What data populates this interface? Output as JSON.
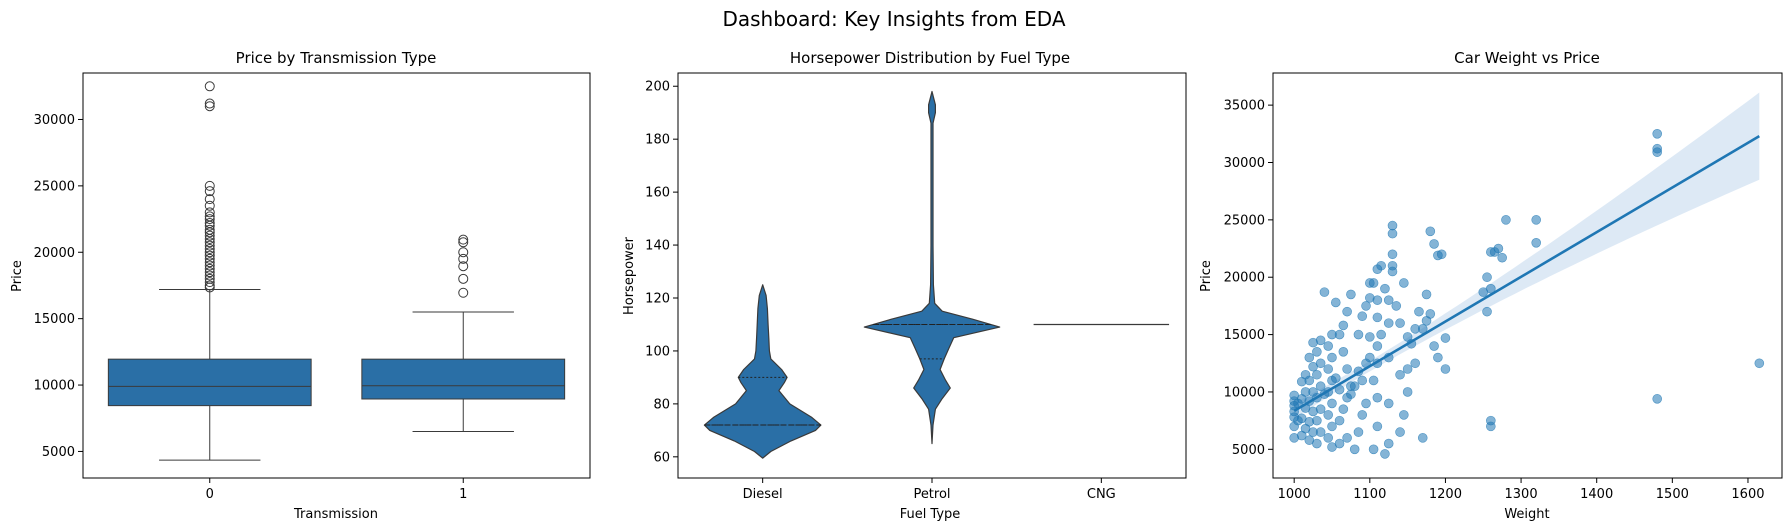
{
  "figure": {
    "title": "Dashboard: Key Insights from EDA"
  },
  "colors": {
    "primary": "#2a6fa6",
    "line": "#1f77b4",
    "band": "#c6dbef",
    "outline": "#3a3a3a"
  },
  "chart_data": [
    {
      "type": "box",
      "title": "Price by Transmission Type",
      "xlabel": "Transmission",
      "ylabel": "Price",
      "categories": [
        "0",
        "1"
      ],
      "ylim": [
        3000,
        33500
      ],
      "yticks": [
        5000,
        10000,
        15000,
        20000,
        25000,
        30000
      ],
      "boxes": [
        {
          "category": "0",
          "whisker_low": 4350,
          "q1": 8450,
          "median": 9900,
          "q3": 11950,
          "whisker_high": 17200,
          "outliers": [
            32500,
            31200,
            31000,
            25000,
            24600,
            24000,
            23500,
            23000,
            22700,
            22500,
            22200,
            22000,
            21700,
            21500,
            21250,
            21000,
            20750,
            20500,
            20250,
            20000,
            19750,
            19500,
            19250,
            19000,
            18750,
            18500,
            18250,
            18000,
            17750,
            17500,
            17350
          ]
        },
        {
          "category": "1",
          "whisker_low": 6500,
          "q1": 8950,
          "median": 9950,
          "q3": 11950,
          "whisker_high": 15500,
          "outliers": [
            20950,
            20750,
            20000,
            19500,
            18950,
            18000,
            16950
          ]
        }
      ]
    },
    {
      "type": "violin",
      "title": "Horsepower Distribution by Fuel Type",
      "xlabel": "Fuel Type",
      "ylabel": "Horsepower",
      "categories": [
        "Diesel",
        "Petrol",
        "CNG"
      ],
      "ylim": [
        52,
        205
      ],
      "yticks": [
        60,
        80,
        100,
        120,
        140,
        160,
        180,
        200
      ],
      "violins": [
        {
          "category": "Diesel",
          "quartiles": [
            72,
            72,
            90
          ],
          "profile": [
            [
              59.5,
              0
            ],
            [
              62,
              0.12
            ],
            [
              66,
              0.42
            ],
            [
              70,
              0.78
            ],
            [
              72,
              0.86
            ],
            [
              75,
              0.72
            ],
            [
              80,
              0.4
            ],
            [
              85,
              0.24
            ],
            [
              88,
              0.32
            ],
            [
              90,
              0.36
            ],
            [
              93,
              0.28
            ],
            [
              97,
              0.12
            ],
            [
              100,
              0.1
            ],
            [
              105,
              0.09
            ],
            [
              110,
              0.08
            ],
            [
              116,
              0.07
            ],
            [
              121,
              0.05
            ],
            [
              125,
              0
            ]
          ]
        },
        {
          "category": "Petrol",
          "quartiles": [
            97,
            110,
            110
          ],
          "profile": [
            [
              65,
              0
            ],
            [
              72,
              0.015
            ],
            [
              78,
              0.05
            ],
            [
              82,
              0.15
            ],
            [
              86,
              0.27
            ],
            [
              89,
              0.2
            ],
            [
              93,
              0.12
            ],
            [
              97,
              0.18
            ],
            [
              101,
              0.25
            ],
            [
              105,
              0.32
            ],
            [
              109,
              1.0
            ],
            [
              112,
              0.6
            ],
            [
              115,
              0.15
            ],
            [
              118,
              0.04
            ],
            [
              125,
              0.02
            ],
            [
              140,
              0.015
            ],
            [
              160,
              0.015
            ],
            [
              178,
              0.015
            ],
            [
              186,
              0.015
            ],
            [
              190,
              0.05
            ],
            [
              193,
              0.05
            ],
            [
              198,
              0
            ]
          ]
        },
        {
          "category": "CNG",
          "quartiles": [
            110,
            110,
            110
          ],
          "constant": 110
        }
      ]
    },
    {
      "type": "scatter",
      "title": "Car Weight vs Price",
      "xlabel": "Weight",
      "ylabel": "Price",
      "xlim": [
        972,
        1645
      ],
      "ylim": [
        2500,
        37800
      ],
      "xticks": [
        1000,
        1100,
        1200,
        1300,
        1400,
        1500,
        1600
      ],
      "yticks": [
        5000,
        10000,
        15000,
        20000,
        25000,
        30000,
        35000
      ],
      "regression": {
        "x": [
          1000,
          1615
        ],
        "y": [
          8350,
          32300
        ],
        "ci_upper_end": 36100,
        "ci_lower_end": 28500
      },
      "points": [
        [
          1480,
          32500
        ],
        [
          1480,
          31200
        ],
        [
          1480,
          30900
        ],
        [
          1480,
          9400
        ],
        [
          1615,
          12500
        ],
        [
          1280,
          25000
        ],
        [
          1320,
          25000
        ],
        [
          1320,
          23000
        ],
        [
          1270,
          22500
        ],
        [
          1260,
          22200
        ],
        [
          1265,
          22200
        ],
        [
          1275,
          21700
        ],
        [
          1255,
          20000
        ],
        [
          1260,
          19000
        ],
        [
          1250,
          18700
        ],
        [
          1255,
          17000
        ],
        [
          1260,
          7500
        ],
        [
          1260,
          7000
        ],
        [
          1195,
          22000
        ],
        [
          1190,
          21900
        ],
        [
          1185,
          22900
        ],
        [
          1180,
          24000
        ],
        [
          1200,
          14700
        ],
        [
          1200,
          12000
        ],
        [
          1175,
          18500
        ],
        [
          1170,
          6000
        ],
        [
          1165,
          17000
        ],
        [
          1160,
          15500
        ],
        [
          1155,
          14200
        ],
        [
          1150,
          12000
        ],
        [
          1150,
          10000
        ],
        [
          1145,
          8000
        ],
        [
          1140,
          6500
        ],
        [
          1140,
          11500
        ],
        [
          1130,
          24500
        ],
        [
          1130,
          23800
        ],
        [
          1130,
          22000
        ],
        [
          1130,
          21000
        ],
        [
          1130,
          20500
        ],
        [
          1125,
          18000
        ],
        [
          1125,
          16000
        ],
        [
          1125,
          13000
        ],
        [
          1125,
          9000
        ],
        [
          1125,
          5500
        ],
        [
          1120,
          4600
        ],
        [
          1115,
          21000
        ],
        [
          1110,
          20700
        ],
        [
          1105,
          19500
        ],
        [
          1110,
          18000
        ],
        [
          1110,
          16500
        ],
        [
          1110,
          14000
        ],
        [
          1110,
          12500
        ],
        [
          1105,
          11000
        ],
        [
          1110,
          9500
        ],
        [
          1110,
          7000
        ],
        [
          1105,
          5000
        ],
        [
          1100,
          19500
        ],
        [
          1100,
          18200
        ],
        [
          1095,
          17500
        ],
        [
          1090,
          16600
        ],
        [
          1085,
          15000
        ],
        [
          1100,
          13000
        ],
        [
          1090,
          11000
        ],
        [
          1095,
          9000
        ],
        [
          1090,
          8000
        ],
        [
          1085,
          6500
        ],
        [
          1080,
          5000
        ],
        [
          1075,
          18500
        ],
        [
          1070,
          17000
        ],
        [
          1065,
          15800
        ],
        [
          1060,
          15000
        ],
        [
          1065,
          13500
        ],
        [
          1070,
          12000
        ],
        [
          1075,
          10500
        ],
        [
          1070,
          9500
        ],
        [
          1065,
          8500
        ],
        [
          1060,
          7500
        ],
        [
          1070,
          6000
        ],
        [
          1060,
          5500
        ],
        [
          1055,
          17800
        ],
        [
          1050,
          15000
        ],
        [
          1045,
          14000
        ],
        [
          1050,
          13000
        ],
        [
          1045,
          12000
        ],
        [
          1050,
          11000
        ],
        [
          1045,
          10000
        ],
        [
          1050,
          9000
        ],
        [
          1045,
          8000
        ],
        [
          1050,
          7000
        ],
        [
          1045,
          6000
        ],
        [
          1050,
          5200
        ],
        [
          1040,
          18700
        ],
        [
          1035,
          14500
        ],
        [
          1030,
          13500
        ],
        [
          1035,
          12500
        ],
        [
          1030,
          11500
        ],
        [
          1035,
          10500
        ],
        [
          1030,
          9500
        ],
        [
          1035,
          8500
        ],
        [
          1030,
          7500
        ],
        [
          1035,
          6500
        ],
        [
          1030,
          5500
        ],
        [
          1025,
          14300
        ],
        [
          1020,
          13000
        ],
        [
          1025,
          12200
        ],
        [
          1020,
          11000
        ],
        [
          1025,
          10000
        ],
        [
          1020,
          9200
        ],
        [
          1025,
          8300
        ],
        [
          1020,
          7400
        ],
        [
          1025,
          6500
        ],
        [
          1020,
          5800
        ],
        [
          1015,
          11500
        ],
        [
          1010,
          10900
        ],
        [
          1015,
          10000
        ],
        [
          1010,
          9400
        ],
        [
          1015,
          8600
        ],
        [
          1010,
          7700
        ],
        [
          1015,
          6800
        ],
        [
          1010,
          6200
        ],
        [
          1000,
          9700
        ],
        [
          1000,
          9200
        ],
        [
          1000,
          8800
        ],
        [
          1000,
          8300
        ],
        [
          1000,
          7800
        ],
        [
          1000,
          7000
        ],
        [
          1000,
          6000
        ],
        [
          1005,
          9000
        ],
        [
          1005,
          7500
        ],
        [
          1180,
          16800
        ],
        [
          1175,
          16200
        ],
        [
          1170,
          15500
        ],
        [
          1185,
          14000
        ],
        [
          1190,
          13000
        ],
        [
          1160,
          12500
        ],
        [
          1150,
          14800
        ],
        [
          1140,
          16000
        ],
        [
          1145,
          19500
        ],
        [
          1135,
          17500
        ],
        [
          1120,
          19000
        ],
        [
          1115,
          15000
        ],
        [
          1100,
          14800
        ],
        [
          1095,
          12500
        ],
        [
          1085,
          11800
        ],
        [
          1080,
          10500
        ],
        [
          1075,
          9800
        ],
        [
          1060,
          10200
        ],
        [
          1055,
          11200
        ],
        [
          1040,
          9800
        ]
      ]
    }
  ]
}
